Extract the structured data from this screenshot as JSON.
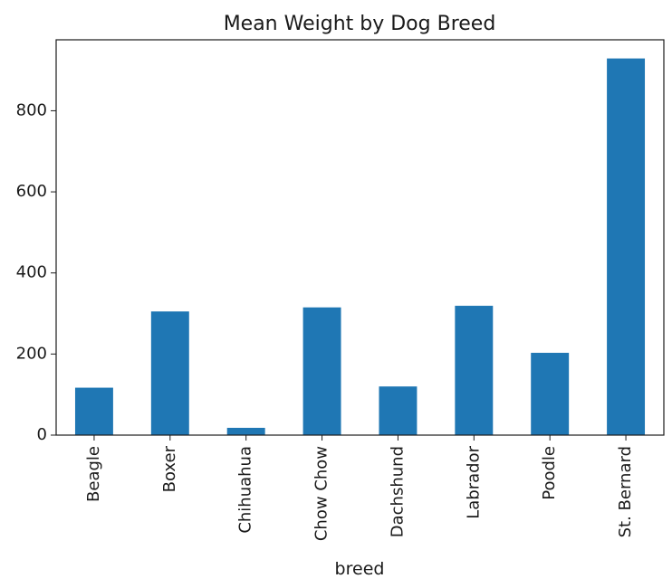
{
  "chart_data": {
    "type": "bar",
    "title": "Mean Weight by Dog Breed",
    "xlabel": "breed",
    "ylabel": "",
    "categories": [
      "Beagle",
      "Boxer",
      "Chihuahua",
      "Chow Chow",
      "Dachshund",
      "Labrador",
      "Poodle",
      "St. Bernard"
    ],
    "values": [
      117,
      305,
      18,
      315,
      120,
      319,
      203,
      929
    ],
    "ylim": [
      0,
      975
    ],
    "yticks": [
      0,
      200,
      400,
      600,
      800
    ],
    "grid": false,
    "legend": "none",
    "bar_color": "#1f77b4",
    "axis_color": "#1a1a1a"
  }
}
